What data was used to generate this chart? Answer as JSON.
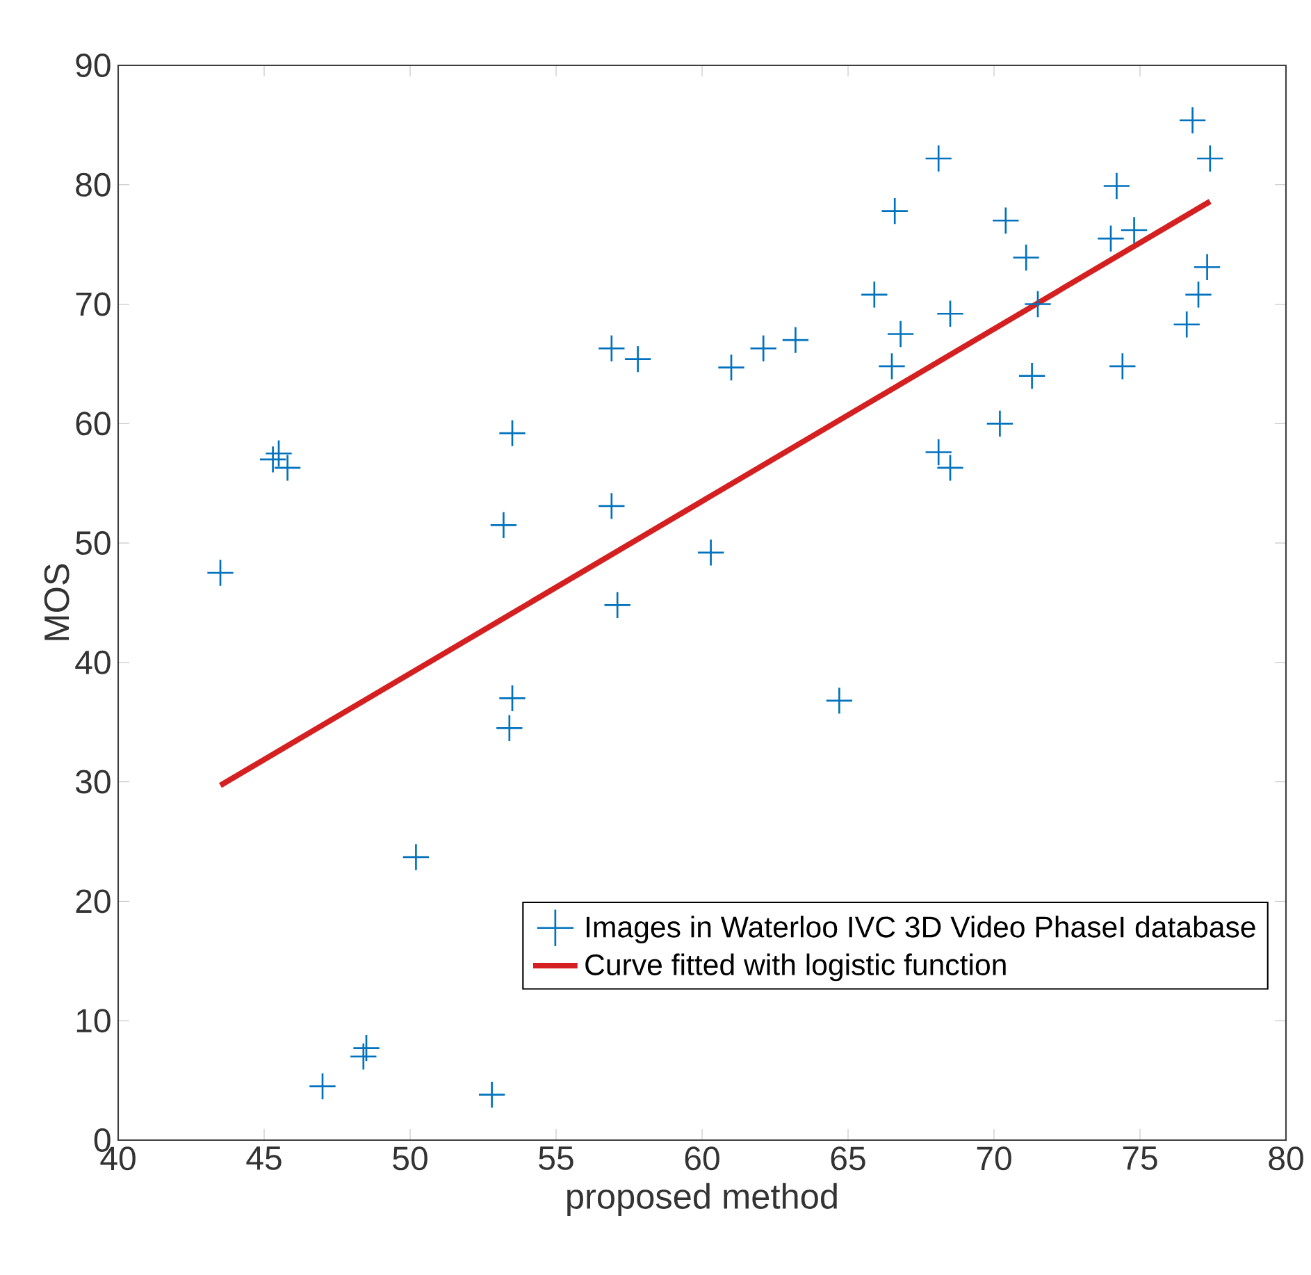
{
  "chart_data": {
    "type": "scatter",
    "xlabel": "proposed method",
    "ylabel": "MOS",
    "xlim": [
      40,
      80
    ],
    "ylim": [
      0,
      90
    ],
    "xticks": [
      40,
      45,
      50,
      55,
      60,
      65,
      70,
      75,
      80
    ],
    "yticks": [
      0,
      10,
      20,
      30,
      40,
      50,
      60,
      70,
      80,
      90
    ],
    "legend": "bottom right",
    "grid": false,
    "series": [
      {
        "name": "Images in Waterloo IVC 3D Video PhaseI database",
        "marker": "cross",
        "color": "#0072bd",
        "x": [
          43.5,
          45.3,
          45.5,
          45.8,
          47,
          48.4,
          48.5,
          50.2,
          52.8,
          53.2,
          53.4,
          53.5,
          53.5,
          56.9,
          56.9,
          57.1,
          57.8,
          60.3,
          61,
          62.1,
          63.2,
          64.7,
          65.9,
          66.5,
          66.6,
          66.8,
          68.1,
          68.1,
          68.5,
          68.5,
          70.2,
          70.4,
          71.1,
          71.3,
          71.5,
          74,
          74.2,
          74.4,
          74.8,
          76.6,
          76.8,
          77,
          77.3,
          77.4
        ],
        "values": [
          47.5,
          57,
          57.5,
          56.3,
          4.5,
          7,
          7.7,
          23.7,
          3.8,
          51.5,
          34.5,
          37,
          59.2,
          66.3,
          53.1,
          44.8,
          65.4,
          49.2,
          64.7,
          66.3,
          67,
          36.8,
          70.8,
          64.8,
          77.8,
          67.5,
          82.2,
          57.6,
          69.2,
          56.3,
          60,
          77,
          73.9,
          64,
          70,
          75.5,
          79.9,
          64.8,
          76.2,
          68.3,
          85.4,
          70.8,
          73.1,
          82.2
        ]
      },
      {
        "name": "Curve fitted with logistic function",
        "type": "line",
        "marker": "none",
        "line_style": "solid",
        "color": "#d42020",
        "x": [
          43.5,
          77.4
        ],
        "values": [
          29.7,
          78.6
        ]
      }
    ]
  }
}
